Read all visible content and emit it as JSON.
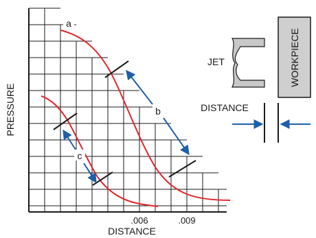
{
  "labels": {
    "y_axis": "PRESSURE",
    "x_axis": "DISTANCE",
    "tick_006": ".006",
    "tick_009": ".009",
    "curve_a": "a",
    "curve_b": "b",
    "curve_c": "c",
    "jet": "JET",
    "workpiece": "WORKPIECE",
    "distance_side": "DISTANCE"
  },
  "colors": {
    "curve": "#e0262b",
    "arrow": "#1f5fa8",
    "grid": "#1a1a1a",
    "jet_fill": "#c8c8c8",
    "workpiece_fill": "#cfcfcf"
  }
}
